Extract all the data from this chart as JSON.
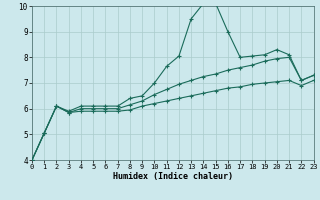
{
  "xlabel": "Humidex (Indice chaleur)",
  "bg_color": "#cce8ec",
  "grid_color": "#aacccc",
  "line_color": "#1a6b5a",
  "xlim": [
    0,
    23
  ],
  "ylim": [
    4,
    10
  ],
  "xticks": [
    0,
    1,
    2,
    3,
    4,
    5,
    6,
    7,
    8,
    9,
    10,
    11,
    12,
    13,
    14,
    15,
    16,
    17,
    18,
    19,
    20,
    21,
    22,
    23
  ],
  "yticks": [
    4,
    5,
    6,
    7,
    8,
    9,
    10
  ],
  "line1_x": [
    0,
    1,
    2,
    3,
    4,
    5,
    6,
    7,
    8,
    9,
    10,
    11,
    12,
    13,
    14,
    15,
    16,
    17,
    18,
    19,
    20,
    21,
    22,
    23
  ],
  "line1_y": [
    4.0,
    5.05,
    6.1,
    5.9,
    6.1,
    6.1,
    6.1,
    6.1,
    6.4,
    6.5,
    7.0,
    7.65,
    8.05,
    9.5,
    10.1,
    10.1,
    9.0,
    8.0,
    8.05,
    8.1,
    8.3,
    8.1,
    7.1,
    7.3
  ],
  "line2_x": [
    0,
    1,
    2,
    3,
    4,
    5,
    6,
    7,
    8,
    9,
    10,
    11,
    12,
    13,
    14,
    15,
    16,
    17,
    18,
    19,
    20,
    21,
    22,
    23
  ],
  "line2_y": [
    4.0,
    5.05,
    6.1,
    5.85,
    6.0,
    6.0,
    6.0,
    6.0,
    6.15,
    6.3,
    6.55,
    6.75,
    6.95,
    7.1,
    7.25,
    7.35,
    7.5,
    7.6,
    7.7,
    7.85,
    7.95,
    8.0,
    7.1,
    7.3
  ],
  "line3_x": [
    0,
    1,
    2,
    3,
    4,
    5,
    6,
    7,
    8,
    9,
    10,
    11,
    12,
    13,
    14,
    15,
    16,
    17,
    18,
    19,
    20,
    21,
    22,
    23
  ],
  "line3_y": [
    4.0,
    5.05,
    6.1,
    5.85,
    5.9,
    5.9,
    5.9,
    5.9,
    5.95,
    6.1,
    6.2,
    6.3,
    6.4,
    6.5,
    6.6,
    6.7,
    6.8,
    6.85,
    6.95,
    7.0,
    7.05,
    7.1,
    6.9,
    7.1
  ]
}
